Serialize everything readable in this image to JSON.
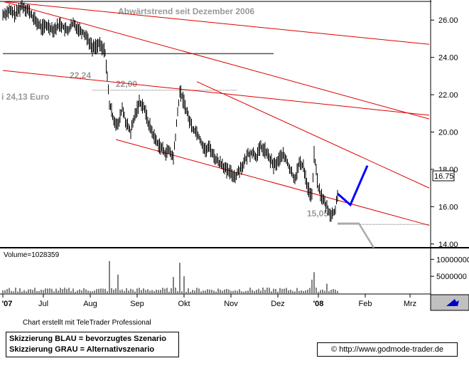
{
  "chart_data": {
    "type": "candlestick",
    "title": "Abwärtstrend seit Dezember 2006",
    "ylim": [
      13.8,
      27.0
    ],
    "yticks": [
      "26.00",
      "24.00",
      "22.00",
      "20.00",
      "18.00",
      "16.00",
      "14.00"
    ],
    "xticks": [
      "'07",
      "Jul",
      "Aug",
      "Sep",
      "Okt",
      "Nov",
      "Dez",
      "'08",
      "Feb",
      "Mrz"
    ],
    "last_price": "16.75",
    "annotations": {
      "high1": "22,24",
      "high2": "22,00",
      "low": "15,05",
      "left_text": "i 24,13 Euro"
    },
    "volume": {
      "label": "Volume=1028359",
      "yticks": [
        "10000000",
        "5000000"
      ]
    },
    "price_path": [
      [
        0,
        26.3
      ],
      [
        3,
        26.5
      ],
      [
        6,
        26.3
      ],
      [
        9,
        26.8
      ],
      [
        12,
        26.5
      ],
      [
        15,
        26.0
      ],
      [
        18,
        25.6
      ],
      [
        21,
        25.7
      ],
      [
        24,
        25.5
      ],
      [
        27,
        25.8
      ],
      [
        30,
        25.4
      ],
      [
        33,
        25.8
      ],
      [
        36,
        25.5
      ],
      [
        39,
        25.2
      ],
      [
        42,
        24.5
      ],
      [
        45,
        24.7
      ],
      [
        48,
        24.3
      ],
      [
        50,
        21.5
      ],
      [
        52,
        20.7
      ],
      [
        54,
        20.3
      ],
      [
        56,
        21.3
      ],
      [
        58,
        20.4
      ],
      [
        60,
        20.0
      ],
      [
        62,
        20.9
      ],
      [
        64,
        21.6
      ],
      [
        66,
        21.4
      ],
      [
        68,
        20.6
      ],
      [
        70,
        20.0
      ],
      [
        72,
        19.5
      ],
      [
        74,
        19.2
      ],
      [
        76,
        18.9
      ],
      [
        78,
        19.0
      ],
      [
        80,
        18.6
      ],
      [
        83,
        22.2
      ],
      [
        85,
        21.6
      ],
      [
        87,
        20.8
      ],
      [
        89,
        20.2
      ],
      [
        91,
        20.0
      ],
      [
        93,
        19.5
      ],
      [
        95,
        19.0
      ],
      [
        97,
        19.2
      ],
      [
        99,
        18.7
      ],
      [
        101,
        18.4
      ],
      [
        103,
        18.3
      ],
      [
        105,
        17.9
      ],
      [
        107,
        17.8
      ],
      [
        109,
        17.6
      ],
      [
        111,
        18.0
      ],
      [
        113,
        18.3
      ],
      [
        115,
        18.8
      ],
      [
        117,
        18.9
      ],
      [
        119,
        18.7
      ],
      [
        121,
        19.2
      ],
      [
        123,
        19.0
      ],
      [
        125,
        18.6
      ],
      [
        127,
        18.2
      ],
      [
        129,
        18.4
      ],
      [
        131,
        18.8
      ],
      [
        133,
        18.5
      ],
      [
        135,
        17.9
      ],
      [
        137,
        17.5
      ],
      [
        139,
        18.3
      ],
      [
        141,
        18.2
      ],
      [
        143,
        17.0
      ],
      [
        145,
        16.5
      ],
      [
        146,
        18.8
      ],
      [
        148,
        17.0
      ],
      [
        150,
        16.4
      ],
      [
        152,
        16.0
      ],
      [
        154,
        15.5
      ],
      [
        156,
        15.8
      ],
      [
        157,
        16.7
      ]
    ],
    "blue_scenario": [
      [
        157,
        16.7
      ],
      [
        163,
        16.1
      ],
      [
        171,
        18.2
      ]
    ],
    "grey_scenario": [
      [
        157,
        15.1
      ],
      [
        167,
        15.1
      ],
      [
        174,
        13.8
      ]
    ]
  },
  "footer": {
    "credit": "Chart erstellt mit TeleTrader Professional",
    "legend_blue": "Skizzierung BLAU = bevorzugtes Szenario",
    "legend_grey": "Skizzierung GRAU = Alternativszenario",
    "copyright": "©",
    "url": "http://www.godmode-trader.de"
  }
}
